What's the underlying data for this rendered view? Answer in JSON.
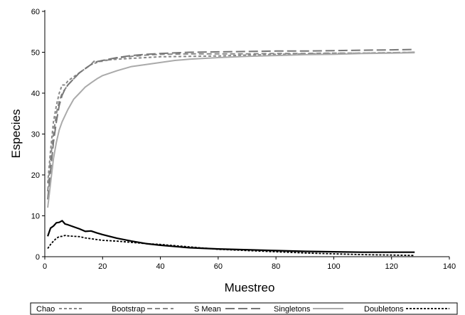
{
  "chart_data": {
    "type": "line",
    "title": "",
    "xlabel": "Muestreo",
    "ylabel": "Especies",
    "xlim": [
      0,
      140
    ],
    "ylim": [
      0,
      60
    ],
    "xticks": [
      0,
      20,
      40,
      60,
      80,
      100,
      120,
      140
    ],
    "yticks": [
      0,
      10,
      20,
      30,
      40,
      50,
      60
    ],
    "grid": false,
    "legend_position": "bottom",
    "series": [
      {
        "name": "Chao",
        "color": "#888888",
        "style": "short-dash",
        "x": [
          1,
          2,
          3,
          4,
          5,
          6,
          7,
          8,
          10,
          12,
          14,
          16,
          18,
          20,
          25,
          30,
          35,
          40,
          50,
          60,
          70,
          80,
          90,
          100,
          110,
          120,
          128
        ],
        "y": [
          18,
          26,
          33,
          37,
          40,
          42,
          42,
          43,
          44,
          45,
          46,
          47,
          47.5,
          48,
          48.3,
          48.5,
          48.7,
          48.9,
          49,
          49.1,
          49.3,
          49.5,
          49.6,
          49.7,
          49.8,
          49.9,
          50
        ]
      },
      {
        "name": "Bootstrap",
        "color": "#888888",
        "style": "medium-dash",
        "x": [
          1,
          2,
          3,
          4,
          5,
          6,
          7,
          8,
          10,
          12,
          14,
          16,
          17,
          20,
          25,
          30,
          35,
          40,
          50,
          60,
          70,
          80,
          90,
          100,
          110,
          120,
          128
        ],
        "y": [
          16,
          24,
          30,
          35,
          38,
          40,
          41,
          42,
          43.5,
          45,
          46,
          47,
          47.8,
          47.8,
          48.6,
          49,
          49.3,
          49.5,
          49.6,
          49.6,
          49.6,
          49.7,
          49.7,
          49.8,
          49.8,
          49.9,
          50
        ]
      },
      {
        "name": "S Mean",
        "color": "#777777",
        "style": "long-dash",
        "x": [
          1,
          2,
          3,
          4,
          5,
          6,
          7,
          8,
          10,
          12,
          14,
          16,
          18,
          20,
          25,
          30,
          35,
          40,
          50,
          60,
          70,
          80,
          90,
          100,
          110,
          120,
          128
        ],
        "y": [
          14,
          21,
          28,
          33,
          37,
          39.5,
          41,
          42,
          43.5,
          45,
          46,
          47,
          47.7,
          48,
          48.7,
          49.2,
          49.5,
          49.7,
          50,
          50.1,
          50.2,
          50.3,
          50.3,
          50.4,
          50.5,
          50.6,
          50.7
        ]
      },
      {
        "name": "Singletons",
        "color": "#aaaaaa",
        "style": "solid",
        "x": [
          1,
          2,
          3,
          4,
          5,
          6,
          8,
          10,
          12,
          14,
          16,
          18,
          20,
          25,
          30,
          35,
          40,
          45,
          50,
          60,
          70,
          80,
          90,
          100,
          110,
          120,
          128
        ],
        "y": [
          12,
          18,
          24,
          28,
          31,
          33,
          36,
          38.5,
          40,
          41.5,
          42.5,
          43.5,
          44.3,
          45.5,
          46.5,
          47,
          47.5,
          48,
          48.3,
          48.7,
          49,
          49.2,
          49.4,
          49.5,
          49.7,
          49.8,
          49.9
        ]
      },
      {
        "name": "Doubletons",
        "color": "#000000",
        "style": "solid-thick",
        "x": [
          1,
          2,
          3,
          4,
          5,
          6,
          7,
          8,
          10,
          12,
          14,
          16,
          18,
          20,
          25,
          30,
          35,
          40,
          50,
          60,
          70,
          80,
          90,
          100,
          110,
          120,
          128
        ],
        "y": [
          5,
          7,
          7.5,
          8.3,
          8.4,
          8.8,
          8,
          7.8,
          7.3,
          6.8,
          6.2,
          6.3,
          5.8,
          5.4,
          4.5,
          3.8,
          3.2,
          2.8,
          2.2,
          1.9,
          1.7,
          1.5,
          1.3,
          1.2,
          1.1,
          1.1,
          1.1
        ]
      },
      {
        "name": "",
        "color": "#000000",
        "style": "dotted",
        "x": [
          1,
          2,
          3,
          4,
          5,
          6,
          7,
          8,
          10,
          12,
          14,
          16,
          18,
          20,
          25,
          30,
          35,
          40,
          50,
          60,
          70,
          80,
          90,
          100,
          110,
          120,
          128
        ],
        "y": [
          2,
          3,
          3.8,
          4.5,
          4.9,
          5,
          5.2,
          5.1,
          5,
          4.9,
          4.6,
          4.4,
          4.2,
          4,
          3.8,
          3.5,
          3.2,
          3,
          2.4,
          1.8,
          1.5,
          1.2,
          0.9,
          0.7,
          0.5,
          0.4,
          0.3
        ]
      }
    ]
  }
}
